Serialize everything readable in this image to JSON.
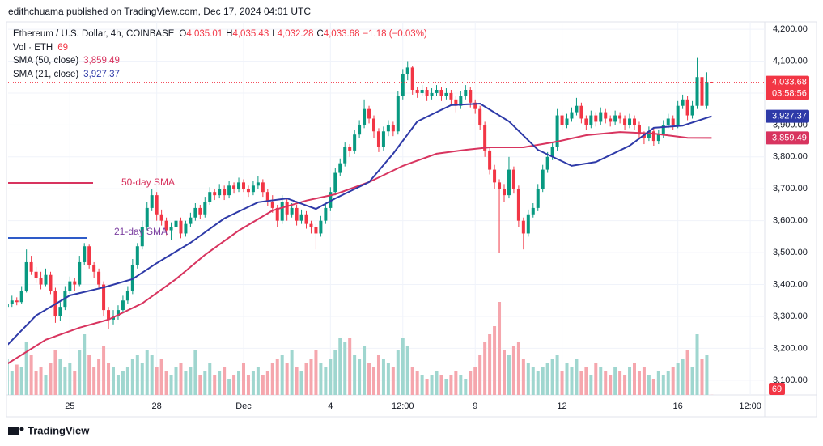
{
  "header": {
    "publisher": "edithchuama published on TradingView.com, Dec 17, 2024 04:01 UTC"
  },
  "footer": {
    "brand": "TradingView"
  },
  "chart_data": {
    "type": "candlestick",
    "title": "Ethereum / U.S. Dollar, 4h, COINBASE",
    "ohlc_keys": [
      "O",
      "H",
      "L",
      "C"
    ],
    "ohlc_labels": [
      "4,035.01",
      "4,035.43",
      "4,032.28",
      "4,033.68"
    ],
    "change": "−1.18 (−0.03%)",
    "volume_label": "Vol · ETH",
    "countdown": "03:58:56",
    "colors": {
      "up": "#089981",
      "down": "#f23645",
      "volume_up": "#9fd6cf",
      "volume_down": "#f5a6ad"
    },
    "grid": true,
    "xlim": [
      0.2,
      157
    ],
    "ylim": [
      3054,
      4223
    ],
    "xticks": [
      {
        "value": 13,
        "label": "25"
      },
      {
        "value": 31,
        "label": "28"
      },
      {
        "value": 49,
        "label": "Dec"
      },
      {
        "value": 67,
        "label": "4"
      },
      {
        "value": 82,
        "label": "12:00"
      },
      {
        "value": 97,
        "label": "9"
      },
      {
        "value": 115,
        "label": "12"
      },
      {
        "value": 139,
        "label": "16"
      },
      {
        "value": 154,
        "label": "12:00"
      }
    ],
    "yticks": [
      {
        "value": 3100,
        "label": "3,100.00"
      },
      {
        "value": 3200,
        "label": "3,200.00"
      },
      {
        "value": 3300,
        "label": "3,300.00"
      },
      {
        "value": 3400,
        "label": "3,400.00"
      },
      {
        "value": 3500,
        "label": "3,500.00"
      },
      {
        "value": 3600,
        "label": "3,600.00"
      },
      {
        "value": 3700,
        "label": "3,700.00"
      },
      {
        "value": 3800,
        "label": "3,800.00"
      },
      {
        "value": 3900,
        "label": "3,900.00"
      },
      {
        "value": 4000,
        "label": "4,000.00"
      },
      {
        "value": 4100,
        "label": "4,100.00"
      },
      {
        "value": 4200,
        "label": "4,200.00"
      }
    ],
    "candles": [
      [
        3330,
        3355,
        3320,
        3340
      ],
      [
        3340,
        3365,
        3330,
        3350
      ],
      [
        3350,
        3360,
        3335,
        3345
      ],
      [
        3345,
        3395,
        3340,
        3380
      ],
      [
        3380,
        3510,
        3375,
        3470
      ],
      [
        3470,
        3490,
        3430,
        3440
      ],
      [
        3440,
        3455,
        3405,
        3420
      ],
      [
        3420,
        3440,
        3385,
        3400
      ],
      [
        3400,
        3450,
        3395,
        3430
      ],
      [
        3430,
        3440,
        3370,
        3380
      ],
      [
        3380,
        3390,
        3280,
        3300
      ],
      [
        3300,
        3345,
        3285,
        3330
      ],
      [
        3330,
        3395,
        3320,
        3380
      ],
      [
        3380,
        3425,
        3370,
        3410
      ],
      [
        3410,
        3420,
        3380,
        3400
      ],
      [
        3400,
        3490,
        3395,
        3470
      ],
      [
        3470,
        3530,
        3460,
        3520
      ],
      [
        3520,
        3525,
        3450,
        3460
      ],
      [
        3460,
        3470,
        3420,
        3440
      ],
      [
        3440,
        3450,
        3390,
        3400
      ],
      [
        3400,
        3410,
        3300,
        3320
      ],
      [
        3320,
        3330,
        3260,
        3290
      ],
      [
        3290,
        3320,
        3275,
        3300
      ],
      [
        3300,
        3335,
        3290,
        3320
      ],
      [
        3320,
        3365,
        3310,
        3350
      ],
      [
        3350,
        3395,
        3340,
        3380
      ],
      [
        3380,
        3480,
        3370,
        3460
      ],
      [
        3460,
        3530,
        3450,
        3520
      ],
      [
        3520,
        3600,
        3510,
        3580
      ],
      [
        3580,
        3660,
        3570,
        3640
      ],
      [
        3640,
        3700,
        3630,
        3680
      ],
      [
        3680,
        3690,
        3600,
        3620
      ],
      [
        3620,
        3635,
        3585,
        3600
      ],
      [
        3600,
        3610,
        3555,
        3570
      ],
      [
        3570,
        3595,
        3540,
        3580
      ],
      [
        3580,
        3615,
        3570,
        3600
      ],
      [
        3600,
        3610,
        3545,
        3560
      ],
      [
        3560,
        3600,
        3550,
        3590
      ],
      [
        3590,
        3625,
        3580,
        3610
      ],
      [
        3610,
        3655,
        3600,
        3640
      ],
      [
        3640,
        3650,
        3605,
        3620
      ],
      [
        3620,
        3675,
        3610,
        3660
      ],
      [
        3660,
        3705,
        3650,
        3690
      ],
      [
        3690,
        3700,
        3665,
        3680
      ],
      [
        3680,
        3715,
        3670,
        3700
      ],
      [
        3700,
        3710,
        3665,
        3680
      ],
      [
        3680,
        3725,
        3670,
        3710
      ],
      [
        3710,
        3720,
        3685,
        3700
      ],
      [
        3700,
        3735,
        3690,
        3720
      ],
      [
        3720,
        3730,
        3690,
        3700
      ],
      [
        3700,
        3710,
        3675,
        3690
      ],
      [
        3690,
        3725,
        3680,
        3710
      ],
      [
        3710,
        3740,
        3700,
        3720
      ],
      [
        3720,
        3730,
        3675,
        3690
      ],
      [
        3690,
        3700,
        3645,
        3660
      ],
      [
        3660,
        3680,
        3625,
        3640
      ],
      [
        3640,
        3650,
        3580,
        3600
      ],
      [
        3600,
        3680,
        3590,
        3660
      ],
      [
        3660,
        3670,
        3600,
        3620
      ],
      [
        3620,
        3655,
        3610,
        3640
      ],
      [
        3640,
        3650,
        3585,
        3600
      ],
      [
        3600,
        3635,
        3590,
        3620
      ],
      [
        3620,
        3630,
        3575,
        3590
      ],
      [
        3590,
        3600,
        3560,
        3580
      ],
      [
        3580,
        3590,
        3510,
        3560
      ],
      [
        3560,
        3615,
        3550,
        3600
      ],
      [
        3600,
        3655,
        3590,
        3640
      ],
      [
        3640,
        3705,
        3630,
        3690
      ],
      [
        3690,
        3765,
        3680,
        3750
      ],
      [
        3750,
        3795,
        3740,
        3780
      ],
      [
        3780,
        3845,
        3770,
        3830
      ],
      [
        3830,
        3840,
        3800,
        3820
      ],
      [
        3820,
        3885,
        3810,
        3870
      ],
      [
        3870,
        3915,
        3860,
        3900
      ],
      [
        3900,
        3980,
        3890,
        3950
      ],
      [
        3950,
        3960,
        3905,
        3920
      ],
      [
        3920,
        3930,
        3860,
        3880
      ],
      [
        3880,
        3890,
        3815,
        3830
      ],
      [
        3830,
        3895,
        3820,
        3880
      ],
      [
        3880,
        3915,
        3865,
        3900
      ],
      [
        3900,
        3910,
        3865,
        3880
      ],
      [
        3880,
        4005,
        3870,
        3990
      ],
      [
        3990,
        4075,
        3980,
        4060
      ],
      [
        4060,
        4100,
        4040,
        4080
      ],
      [
        4080,
        4085,
        3995,
        4010
      ],
      [
        4010,
        4020,
        3985,
        4000
      ],
      [
        4000,
        4025,
        3990,
        4010
      ],
      [
        4010,
        4020,
        3975,
        3990
      ],
      [
        3990,
        4015,
        3980,
        4000
      ],
      [
        4000,
        4025,
        3990,
        4010
      ],
      [
        4010,
        4020,
        3975,
        3990
      ],
      [
        3990,
        4015,
        3980,
        4000
      ],
      [
        4000,
        4010,
        3965,
        3980
      ],
      [
        3980,
        3990,
        3940,
        3960
      ],
      [
        3960,
        4005,
        3950,
        3990
      ],
      [
        3990,
        4025,
        3980,
        4010
      ],
      [
        4010,
        4020,
        3955,
        3970
      ],
      [
        3970,
        3980,
        3935,
        3950
      ],
      [
        3950,
        3960,
        3885,
        3900
      ],
      [
        3900,
        3910,
        3800,
        3820
      ],
      [
        3820,
        3830,
        3745,
        3760
      ],
      [
        3760,
        3775,
        3700,
        3720
      ],
      [
        3720,
        3730,
        3500,
        3700
      ],
      [
        3700,
        3715,
        3660,
        3680
      ],
      [
        3680,
        3800,
        3670,
        3760
      ],
      [
        3760,
        3770,
        3685,
        3700
      ],
      [
        3700,
        3710,
        3580,
        3600
      ],
      [
        3600,
        3610,
        3510,
        3560
      ],
      [
        3560,
        3635,
        3550,
        3620
      ],
      [
        3620,
        3655,
        3610,
        3640
      ],
      [
        3640,
        3715,
        3630,
        3700
      ],
      [
        3700,
        3775,
        3690,
        3760
      ],
      [
        3760,
        3815,
        3750,
        3800
      ],
      [
        3800,
        3845,
        3790,
        3830
      ],
      [
        3830,
        3950,
        3820,
        3930
      ],
      [
        3930,
        3940,
        3885,
        3900
      ],
      [
        3900,
        3935,
        3890,
        3920
      ],
      [
        3920,
        3955,
        3910,
        3940
      ],
      [
        3940,
        3985,
        3930,
        3960
      ],
      [
        3960,
        3970,
        3905,
        3920
      ],
      [
        3920,
        3930,
        3885,
        3900
      ],
      [
        3900,
        3945,
        3890,
        3930
      ],
      [
        3930,
        3940,
        3895,
        3910
      ],
      [
        3910,
        3955,
        3900,
        3940
      ],
      [
        3940,
        3950,
        3905,
        3920
      ],
      [
        3920,
        3930,
        3895,
        3910
      ],
      [
        3910,
        3945,
        3900,
        3930
      ],
      [
        3930,
        3940,
        3905,
        3920
      ],
      [
        3920,
        3930,
        3885,
        3900
      ],
      [
        3900,
        3935,
        3890,
        3920
      ],
      [
        3920,
        3930,
        3885,
        3900
      ],
      [
        3900,
        3910,
        3855,
        3870
      ],
      [
        3870,
        3880,
        3840,
        3860
      ],
      [
        3860,
        3895,
        3850,
        3880
      ],
      [
        3880,
        3890,
        3835,
        3850
      ],
      [
        3850,
        3885,
        3840,
        3870
      ],
      [
        3870,
        3915,
        3860,
        3900
      ],
      [
        3900,
        3935,
        3890,
        3920
      ],
      [
        3920,
        3930,
        3885,
        3900
      ],
      [
        3900,
        3975,
        3890,
        3960
      ],
      [
        3960,
        3995,
        3950,
        3980
      ],
      [
        3980,
        3990,
        3915,
        3930
      ],
      [
        3930,
        3975,
        3920,
        3960
      ],
      [
        3960,
        4110,
        3950,
        4050
      ],
      [
        4050,
        4060,
        3945,
        3960
      ],
      [
        3960,
        4065,
        3950,
        4034.86
      ],
      [
        4035.01,
        4035.43,
        4032.28,
        4033.68
      ]
    ],
    "volume": [
      18000,
      12000,
      15000,
      14000,
      26000,
      20000,
      12000,
      14000,
      10000,
      16000,
      22000,
      18000,
      14000,
      16000,
      12000,
      22000,
      30000,
      20000,
      14000,
      18000,
      24000,
      16000,
      14000,
      10000,
      12000,
      14000,
      18000,
      20000,
      16000,
      22000,
      20000,
      14000,
      18000,
      12000,
      10000,
      14000,
      16000,
      12000,
      14000,
      22000,
      10000,
      12000,
      16000,
      10000,
      12000,
      14000,
      8000,
      10000,
      12000,
      16000,
      10000,
      12000,
      14000,
      10000,
      12000,
      16000,
      18000,
      20000,
      16000,
      22000,
      14000,
      12000,
      16000,
      18000,
      22000,
      16000,
      14000,
      18000,
      22000,
      28000,
      26000,
      28000,
      20000,
      18000,
      24000,
      16000,
      14000,
      20000,
      18000,
      16000,
      14000,
      22000,
      28000,
      24000,
      14000,
      12000,
      10000,
      8000,
      10000,
      12000,
      10000,
      8000,
      10000,
      12000,
      10000,
      8000,
      12000,
      14000,
      20000,
      26000,
      30000,
      34000,
      46000,
      22000,
      20000,
      24000,
      26000,
      18000,
      16000,
      14000,
      12000,
      14000,
      16000,
      18000,
      20000,
      12000,
      16000,
      14000,
      18000,
      12000,
      14000,
      10000,
      16000,
      14000,
      12000,
      10000,
      14000,
      12000,
      10000,
      14000,
      16000,
      12000,
      14000,
      10000,
      8000,
      12000,
      10000,
      12000,
      14000,
      16000,
      18000,
      22000,
      14000,
      30000,
      18000,
      20000,
      69
    ],
    "series": [
      {
        "name": "SMA (50, close)",
        "color": "#d8345f",
        "value_label": "3,859.49",
        "x": [
          0,
          8,
          15,
          21,
          28,
          35,
          41,
          48,
          55,
          62,
          68,
          75,
          82,
          89,
          95,
          100,
          107,
          114,
          120,
          127,
          134,
          141,
          146
        ],
        "values": [
          3151,
          3227,
          3265,
          3290,
          3341,
          3417,
          3493,
          3569,
          3632,
          3663,
          3683,
          3721,
          3772,
          3810,
          3822,
          3830,
          3830,
          3848,
          3868,
          3878,
          3873,
          3860,
          3859.49
        ]
      },
      {
        "name": "SMA (21, close)",
        "color": "#2e3aa8",
        "value_label": "3,927.37",
        "x": [
          0,
          6,
          13,
          20,
          26,
          31,
          38,
          45,
          52,
          58,
          64,
          68,
          75,
          80,
          85,
          92,
          98,
          104,
          110,
          117,
          122,
          129,
          134,
          140,
          146
        ],
        "values": [
          3210,
          3303,
          3366,
          3391,
          3417,
          3467,
          3531,
          3607,
          3658,
          3670,
          3637,
          3670,
          3721,
          3810,
          3911,
          3962,
          3967,
          3911,
          3822,
          3772,
          3784,
          3835,
          3891,
          3898,
          3927.37
        ]
      }
    ],
    "annotations": [
      {
        "text": "50-day SMA"
      },
      {
        "text": "21-day SMA"
      }
    ]
  }
}
